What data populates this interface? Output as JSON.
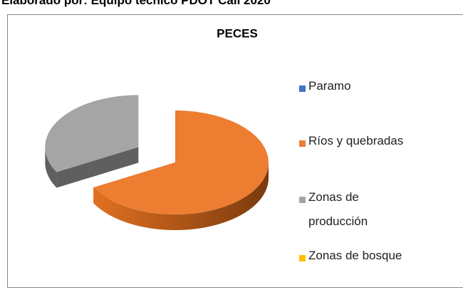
{
  "caption": "Elaborado por: Equipo técnico PDOT Cali 2020",
  "chart_data": {
    "type": "pie",
    "title": "PECES",
    "categories": [
      "Paramo",
      "Ríos y quebradas",
      "Zonas de producción",
      "Zonas de bosque"
    ],
    "values": [
      0,
      67,
      33,
      0
    ],
    "colors": [
      "#4472c4",
      "#ed7d31",
      "#a5a5a5",
      "#ffc000"
    ],
    "side_colors": [
      "#2f528f",
      "url(#g1)",
      "#5f5f5f",
      "#bf9000"
    ],
    "exploded": [
      false,
      false,
      true,
      false
    ]
  }
}
